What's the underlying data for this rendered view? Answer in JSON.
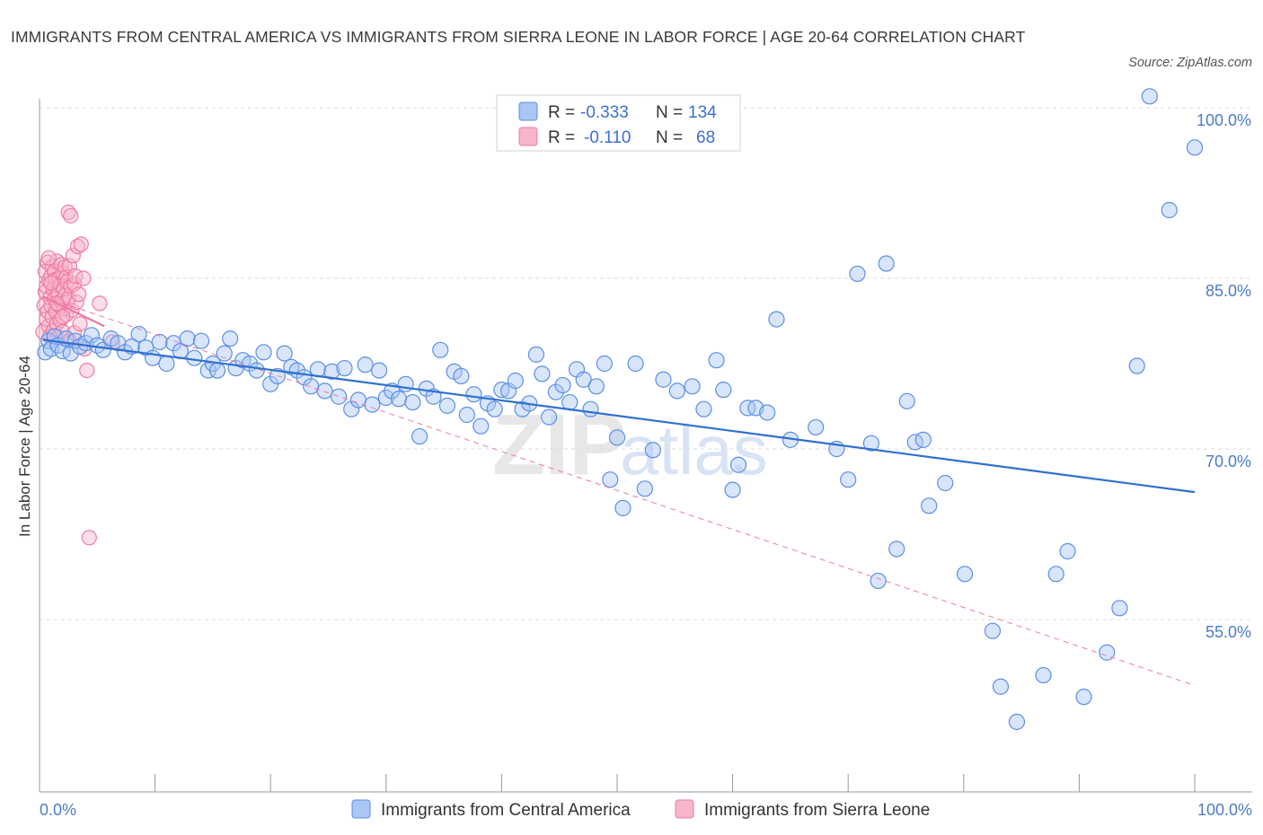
{
  "title": "IMMIGRANTS FROM CENTRAL AMERICA VS IMMIGRANTS FROM SIERRA LEONE IN LABOR FORCE | AGE 20-64 CORRELATION CHART",
  "source": "Source: ZipAtlas.com",
  "watermark": {
    "zip": "ZIP",
    "atlas": "atlas"
  },
  "colors": {
    "blue": "#5b8fe8",
    "blue_fill": "#a9c6f5",
    "pink": "#f07aa0",
    "pink_fill": "#f7b6cb",
    "axis_text": "#4a7cc9"
  },
  "legend": {
    "rows": [
      {
        "r_label": "R =",
        "r_value": "-0.333",
        "n_label": "N =",
        "n_value": "134",
        "color": "blue"
      },
      {
        "r_label": "R =",
        "r_value": "-0.110",
        "n_label": "N =",
        "n_value": "68",
        "color": "pink"
      }
    ]
  },
  "bottom_legend": [
    "Immigrants from Central America",
    "Immigrants from Sierra Leone"
  ],
  "chart_data": {
    "type": "scatter",
    "title": "IMMIGRANTS FROM CENTRAL AMERICA VS IMMIGRANTS FROM SIERRA LEONE IN LABOR FORCE | AGE 20-64 CORRELATION CHART",
    "xlabel": "",
    "ylabel": "In Labor Force | Age 20-64",
    "xlim": [
      0,
      100
    ],
    "ylim": [
      40,
      101
    ],
    "x_tick_labels": [
      "0.0%",
      "100.0%"
    ],
    "y_ticks": [
      55,
      70,
      85,
      100
    ],
    "y_tick_labels": [
      "55.0%",
      "70.0%",
      "85.0%",
      "100.0%"
    ],
    "grid": true,
    "legend_position": "top-center",
    "series": [
      {
        "name": "Immigrants from Central America",
        "color": "blue",
        "trend": {
          "x": [
            0.3,
            100
          ],
          "y": [
            79.6,
            66.2
          ],
          "style": "solid"
        },
        "points": [
          [
            0.5,
            78.5
          ],
          [
            0.8,
            79.5
          ],
          [
            1.0,
            78.8
          ],
          [
            1.3,
            79.9
          ],
          [
            1.6,
            79.1
          ],
          [
            2.0,
            78.6
          ],
          [
            2.3,
            79.7
          ],
          [
            2.7,
            78.4
          ],
          [
            3.1,
            79.5
          ],
          [
            3.5,
            79.0
          ],
          [
            4.0,
            79.3
          ],
          [
            4.5,
            80.0
          ],
          [
            5.0,
            79.1
          ],
          [
            5.5,
            78.7
          ],
          [
            6.2,
            79.7
          ],
          [
            6.8,
            79.3
          ],
          [
            7.4,
            78.5
          ],
          [
            8.0,
            79.0
          ],
          [
            8.6,
            80.1
          ],
          [
            9.2,
            78.9
          ],
          [
            9.8,
            78.0
          ],
          [
            10.4,
            79.4
          ],
          [
            11.0,
            77.5
          ],
          [
            11.6,
            79.3
          ],
          [
            12.2,
            78.6
          ],
          [
            12.8,
            79.7
          ],
          [
            13.4,
            78.0
          ],
          [
            14.0,
            79.5
          ],
          [
            14.6,
            76.9
          ],
          [
            15.0,
            77.5
          ],
          [
            15.4,
            76.9
          ],
          [
            16.0,
            78.4
          ],
          [
            16.5,
            79.7
          ],
          [
            17.0,
            77.1
          ],
          [
            17.6,
            77.8
          ],
          [
            18.2,
            77.5
          ],
          [
            18.8,
            76.9
          ],
          [
            19.4,
            78.5
          ],
          [
            20.0,
            75.7
          ],
          [
            20.6,
            76.4
          ],
          [
            21.2,
            78.4
          ],
          [
            21.8,
            77.2
          ],
          [
            22.3,
            76.9
          ],
          [
            22.9,
            76.3
          ],
          [
            23.5,
            75.5
          ],
          [
            24.1,
            77.0
          ],
          [
            24.7,
            75.1
          ],
          [
            25.3,
            76.8
          ],
          [
            25.9,
            74.6
          ],
          [
            26.4,
            77.1
          ],
          [
            27.0,
            73.5
          ],
          [
            27.6,
            74.3
          ],
          [
            28.2,
            77.4
          ],
          [
            28.8,
            73.9
          ],
          [
            29.4,
            76.9
          ],
          [
            30.0,
            74.5
          ],
          [
            30.5,
            75.1
          ],
          [
            31.1,
            74.4
          ],
          [
            31.7,
            75.7
          ],
          [
            32.3,
            74.1
          ],
          [
            32.9,
            71.1
          ],
          [
            33.5,
            75.3
          ],
          [
            34.1,
            74.6
          ],
          [
            34.7,
            78.7
          ],
          [
            35.3,
            73.8
          ],
          [
            35.9,
            76.8
          ],
          [
            36.5,
            76.4
          ],
          [
            37.0,
            73.0
          ],
          [
            37.6,
            74.8
          ],
          [
            38.2,
            72.0
          ],
          [
            38.8,
            74.0
          ],
          [
            39.4,
            73.5
          ],
          [
            40.0,
            75.2
          ],
          [
            40.6,
            75.1
          ],
          [
            41.2,
            76.0
          ],
          [
            41.8,
            73.5
          ],
          [
            42.4,
            74.0
          ],
          [
            43.0,
            78.3
          ],
          [
            43.5,
            76.6
          ],
          [
            44.1,
            72.8
          ],
          [
            44.7,
            75.0
          ],
          [
            45.3,
            75.6
          ],
          [
            45.9,
            74.1
          ],
          [
            46.5,
            77.0
          ],
          [
            47.1,
            76.1
          ],
          [
            47.7,
            73.5
          ],
          [
            48.2,
            75.5
          ],
          [
            48.9,
            77.5
          ],
          [
            49.4,
            67.3
          ],
          [
            50.0,
            71.0
          ],
          [
            50.5,
            64.8
          ],
          [
            51.6,
            77.5
          ],
          [
            52.4,
            66.5
          ],
          [
            53.1,
            69.9
          ],
          [
            54.0,
            76.1
          ],
          [
            55.2,
            75.1
          ],
          [
            56.5,
            75.5
          ],
          [
            57.5,
            73.5
          ],
          [
            58.6,
            77.8
          ],
          [
            59.2,
            75.2
          ],
          [
            60.0,
            66.4
          ],
          [
            60.5,
            68.6
          ],
          [
            61.3,
            73.6
          ],
          [
            62.0,
            73.6
          ],
          [
            63.0,
            73.2
          ],
          [
            63.8,
            81.4
          ],
          [
            65.0,
            70.8
          ],
          [
            67.2,
            71.9
          ],
          [
            69.0,
            70.0
          ],
          [
            70.0,
            67.3
          ],
          [
            70.8,
            85.4
          ],
          [
            72.0,
            70.5
          ],
          [
            72.6,
            58.4
          ],
          [
            73.3,
            86.3
          ],
          [
            74.2,
            61.2
          ],
          [
            75.1,
            74.2
          ],
          [
            75.8,
            70.6
          ],
          [
            76.5,
            70.8
          ],
          [
            77.0,
            65.0
          ],
          [
            78.4,
            67.0
          ],
          [
            80.1,
            59.0
          ],
          [
            82.5,
            54.0
          ],
          [
            83.2,
            49.1
          ],
          [
            84.6,
            46.0
          ],
          [
            86.9,
            50.1
          ],
          [
            88.0,
            59.0
          ],
          [
            89.0,
            61.0
          ],
          [
            90.4,
            48.2
          ],
          [
            92.4,
            52.1
          ],
          [
            93.5,
            56.0
          ],
          [
            95.0,
            77.3
          ],
          [
            96.1,
            101.0
          ],
          [
            100.0,
            96.5
          ],
          [
            97.8,
            91.0
          ]
        ]
      },
      {
        "name": "Immigrants from Sierra Leone",
        "color": "pink",
        "trend_solid": {
          "x": [
            0.3,
            5.6
          ],
          "y": [
            83.4,
            80.8
          ],
          "style": "solid"
        },
        "trend_dashed": {
          "x": [
            0.3,
            100
          ],
          "y": [
            83.4,
            49.2
          ],
          "style": "dashed"
        },
        "points": [
          [
            0.3,
            80.3
          ],
          [
            0.4,
            82.6
          ],
          [
            0.5,
            83.8
          ],
          [
            0.5,
            85.6
          ],
          [
            0.6,
            81.4
          ],
          [
            0.6,
            84.3
          ],
          [
            0.7,
            86.4
          ],
          [
            0.7,
            82.1
          ],
          [
            0.8,
            80.8
          ],
          [
            0.8,
            84.8
          ],
          [
            0.9,
            83.3
          ],
          [
            0.9,
            79.9
          ],
          [
            1.0,
            85.2
          ],
          [
            1.0,
            82.6
          ],
          [
            1.1,
            86.0
          ],
          [
            1.1,
            81.6
          ],
          [
            1.2,
            84.0
          ],
          [
            1.2,
            80.4
          ],
          [
            1.3,
            85.6
          ],
          [
            1.3,
            83.2
          ],
          [
            1.4,
            82.1
          ],
          [
            1.4,
            84.9
          ],
          [
            1.5,
            81.0
          ],
          [
            1.5,
            86.5
          ],
          [
            1.6,
            83.7
          ],
          [
            1.6,
            79.8
          ],
          [
            1.7,
            85.0
          ],
          [
            1.7,
            82.6
          ],
          [
            1.8,
            84.4
          ],
          [
            1.8,
            81.3
          ],
          [
            1.9,
            86.2
          ],
          [
            1.9,
            83.0
          ],
          [
            2.0,
            85.5
          ],
          [
            2.0,
            80.3
          ],
          [
            2.1,
            84.1
          ],
          [
            2.1,
            82.3
          ],
          [
            2.2,
            86.0
          ],
          [
            2.2,
            83.5
          ],
          [
            2.3,
            81.8
          ],
          [
            2.3,
            85.1
          ],
          [
            2.4,
            84.7
          ],
          [
            2.4,
            82.9
          ],
          [
            2.5,
            90.8
          ],
          [
            2.5,
            83.2
          ],
          [
            2.6,
            86.1
          ],
          [
            2.6,
            79.5
          ],
          [
            2.7,
            90.5
          ],
          [
            2.7,
            84.3
          ],
          [
            2.8,
            82.2
          ],
          [
            2.9,
            87.0
          ],
          [
            3.0,
            84.5
          ],
          [
            3.0,
            80.2
          ],
          [
            3.1,
            85.2
          ],
          [
            3.2,
            82.9
          ],
          [
            3.3,
            87.8
          ],
          [
            3.4,
            83.6
          ],
          [
            3.5,
            81.0
          ],
          [
            3.6,
            88.0
          ],
          [
            3.8,
            85.0
          ],
          [
            3.9,
            78.8
          ],
          [
            4.1,
            76.9
          ],
          [
            4.3,
            62.2
          ],
          [
            1.0,
            84.6
          ],
          [
            1.5,
            82.8
          ],
          [
            2.0,
            81.6
          ],
          [
            0.8,
            86.8
          ],
          [
            5.2,
            82.8
          ],
          [
            6.3,
            79.4
          ]
        ]
      }
    ]
  }
}
